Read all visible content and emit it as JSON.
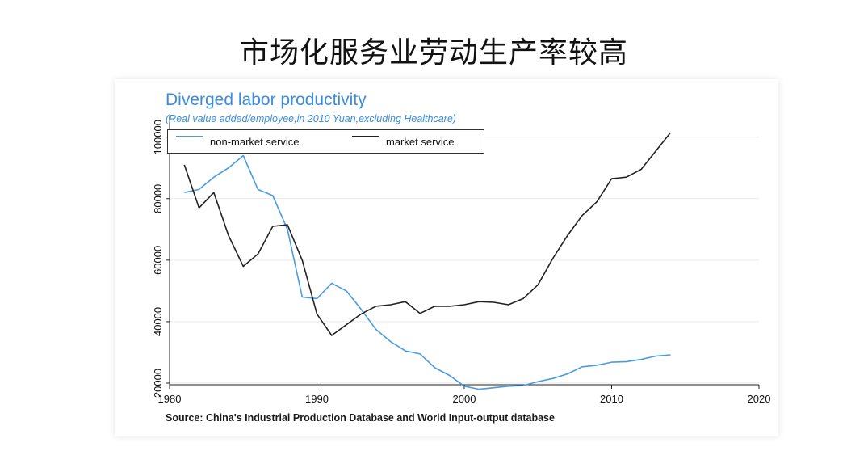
{
  "slide": {
    "title": "市场化服务业劳动生产率较高"
  },
  "chart_data": {
    "type": "line",
    "title": "Diverged labor productivity",
    "subtitle": "(Real value added/employee,in 2010 Yuan,excluding Healthcare)",
    "source": "Source: China's Industrial Production Database and World Input-output database",
    "xlim": [
      1980,
      2020
    ],
    "ylim": [
      20000,
      100000
    ],
    "xticks": [
      "1980",
      "1990",
      "2000",
      "2010",
      "2020"
    ],
    "yticks": [
      "20000",
      "40000",
      "60000",
      "80000",
      "100000"
    ],
    "legend_position": "top-left",
    "grid": true,
    "series": [
      {
        "name": "non-market service",
        "color": "#4a9be0",
        "x": [
          1981,
          1982,
          1983,
          1984,
          1985,
          1986,
          1987,
          1988,
          1989,
          1990,
          1991,
          1992,
          1993,
          1994,
          1995,
          1996,
          1997,
          1998,
          1999,
          2000,
          2001,
          2002,
          2003,
          2004,
          2005,
          2006,
          2007,
          2008,
          2009,
          2010,
          2011,
          2012,
          2013,
          2014
        ],
        "values": [
          82000,
          83000,
          87000,
          90000,
          94000,
          83000,
          81000,
          70000,
          48000,
          47500,
          52500,
          50000,
          44000,
          37500,
          33500,
          30500,
          29500,
          25000,
          22500,
          19000,
          18000,
          18500,
          19000,
          19200,
          20500,
          21500,
          23000,
          25300,
          25800,
          26800,
          27000,
          27700,
          28800,
          29200
        ]
      },
      {
        "name": "market service",
        "color": "#222222",
        "x": [
          1981,
          1982,
          1983,
          1984,
          1985,
          1986,
          1987,
          1988,
          1989,
          1990,
          1991,
          1992,
          1993,
          1994,
          1995,
          1996,
          1997,
          1998,
          1999,
          2000,
          2001,
          2002,
          2003,
          2004,
          2005,
          2006,
          2007,
          2008,
          2009,
          2010,
          2011,
          2012,
          2013,
          2014
        ],
        "values": [
          91000,
          77000,
          82000,
          68000,
          58000,
          62000,
          71000,
          71500,
          60000,
          42500,
          35500,
          39000,
          42500,
          45000,
          45500,
          46500,
          42700,
          45000,
          45000,
          45500,
          46500,
          46300,
          45500,
          47500,
          52000,
          60500,
          68000,
          74500,
          79000,
          86500,
          87000,
          89500,
          95500,
          101500
        ]
      }
    ]
  }
}
